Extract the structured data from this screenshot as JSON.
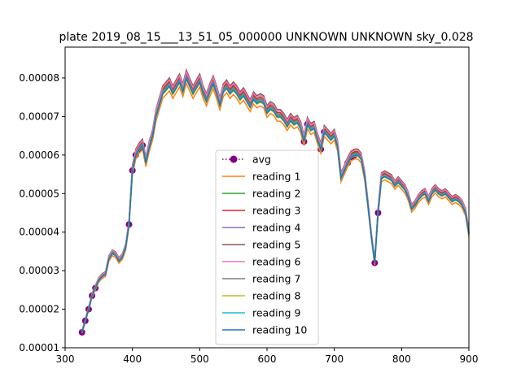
{
  "chart_data": {
    "type": "line",
    "title": "plate 2019_08_15___13_51_05_000000 UNKNOWN UNKNOWN sky_0.028",
    "xlabel": "",
    "ylabel": "",
    "xlim": [
      300,
      900
    ],
    "ylim": [
      1e-05,
      8.8e-05
    ],
    "xticks": [
      300,
      400,
      500,
      600,
      700,
      800,
      900
    ],
    "xtick_labels": [
      "300",
      "400",
      "500",
      "600",
      "700",
      "800",
      "900"
    ],
    "yticks": [
      1e-05,
      2e-05,
      3e-05,
      4e-05,
      5e-05,
      6e-05,
      7e-05,
      8e-05
    ],
    "ytick_labels": [
      "0.00001",
      "0.00002",
      "0.00003",
      "0.00004",
      "0.00005",
      "0.00006",
      "0.00007",
      "0.00008"
    ],
    "grid": false,
    "legend_position": "center",
    "x": [
      325,
      330,
      335,
      340,
      345,
      350,
      355,
      360,
      365,
      370,
      375,
      380,
      385,
      390,
      395,
      400,
      405,
      410,
      415,
      420,
      425,
      430,
      435,
      440,
      445,
      450,
      455,
      460,
      465,
      470,
      475,
      480,
      485,
      490,
      495,
      500,
      505,
      510,
      515,
      520,
      525,
      530,
      535,
      540,
      545,
      550,
      555,
      560,
      565,
      570,
      575,
      580,
      585,
      590,
      595,
      600,
      605,
      610,
      615,
      620,
      625,
      630,
      635,
      640,
      645,
      650,
      655,
      660,
      665,
      670,
      675,
      680,
      685,
      690,
      695,
      700,
      705,
      710,
      715,
      720,
      725,
      730,
      735,
      740,
      745,
      750,
      755,
      760,
      765,
      770,
      775,
      780,
      785,
      790,
      795,
      800,
      805,
      810,
      815,
      820,
      825,
      830,
      835,
      840,
      845,
      850,
      855,
      860,
      865,
      870,
      875,
      880,
      885,
      890,
      895,
      900
    ],
    "avg": [
      1.4e-05,
      1.7e-05,
      2e-05,
      2.35e-05,
      2.55e-05,
      2.75e-05,
      2.85e-05,
      2.9e-05,
      3.3e-05,
      3.45e-05,
      3.4e-05,
      3.25e-05,
      3.35e-05,
      3.6e-05,
      4.2e-05,
      5.6e-05,
      6e-05,
      6.15e-05,
      6.25e-05,
      5.8e-05,
      6.2e-05,
      6.5e-05,
      7e-05,
      7.3e-05,
      7.6e-05,
      7.7e-05,
      7.8e-05,
      7.6e-05,
      7.75e-05,
      7.9e-05,
      7.65e-05,
      8e-05,
      7.8e-05,
      7.6e-05,
      7.75e-05,
      7.9e-05,
      7.6e-05,
      7.4e-05,
      7.65e-05,
      7.85e-05,
      7.6e-05,
      7.3e-05,
      7.65e-05,
      7.75e-05,
      7.6e-05,
      7.7e-05,
      7.6e-05,
      7.45e-05,
      7.55e-05,
      7.4e-05,
      7.25e-05,
      7.45e-05,
      7.35e-05,
      7.4e-05,
      7.35e-05,
      7.1e-05,
      7.2e-05,
      7.15e-05,
      7e-05,
      7e-05,
      6.9e-05,
      6.75e-05,
      6.9e-05,
      6.8e-05,
      6.85e-05,
      6.7e-05,
      6.35e-05,
      6.8e-05,
      6.65e-05,
      6.7e-05,
      6.4e-05,
      6.15e-05,
      6.6e-05,
      6.5e-05,
      6.4e-05,
      6.5e-05,
      6.2e-05,
      5.4e-05,
      5.6e-05,
      5.8e-05,
      5.95e-05,
      6e-05,
      6e-05,
      5.9e-05,
      5.45e-05,
      4.7e-05,
      3.9e-05,
      3.2e-05,
      4.5e-05,
      5.4e-05,
      5.45e-05,
      5.4e-05,
      5.35e-05,
      5.2e-05,
      5.3e-05,
      5.2e-05,
      5.1e-05,
      4.9e-05,
      4.6e-05,
      4.7e-05,
      4.85e-05,
      4.95e-05,
      5e-05,
      4.8e-05,
      5e-05,
      5.1e-05,
      5e-05,
      4.95e-05,
      5e-05,
      4.9e-05,
      4.8e-05,
      4.85e-05,
      4.8e-05,
      4.7e-05,
      4.5e-05,
      3.95e-05
    ],
    "offsets": [
      -1.2e-06,
      6e-07,
      1e-06,
      2e-07,
      1.8e-06,
      1.4e-06,
      4e-07,
      -3e-07,
      1e-07,
      -1e-07
    ],
    "avg_marker_ranges": [
      [
        325,
        345
      ],
      [
        395,
        415
      ],
      [
        655,
        660
      ],
      [
        680,
        685
      ],
      [
        720,
        730
      ],
      [
        760,
        765
      ]
    ],
    "series": [
      {
        "name": "avg",
        "color": "#800080",
        "style": "dotted-marker"
      },
      {
        "name": "reading 1",
        "color": "#ff7f0e"
      },
      {
        "name": "reading 2",
        "color": "#2ca02c"
      },
      {
        "name": "reading 3",
        "color": "#d62728"
      },
      {
        "name": "reading 4",
        "color": "#9467bd"
      },
      {
        "name": "reading 5",
        "color": "#8c564b"
      },
      {
        "name": "reading 6",
        "color": "#e377c2"
      },
      {
        "name": "reading 7",
        "color": "#7f7f7f"
      },
      {
        "name": "reading 8",
        "color": "#bcbd22"
      },
      {
        "name": "reading 9",
        "color": "#17becf"
      },
      {
        "name": "reading 10",
        "color": "#1f77b4"
      }
    ]
  }
}
